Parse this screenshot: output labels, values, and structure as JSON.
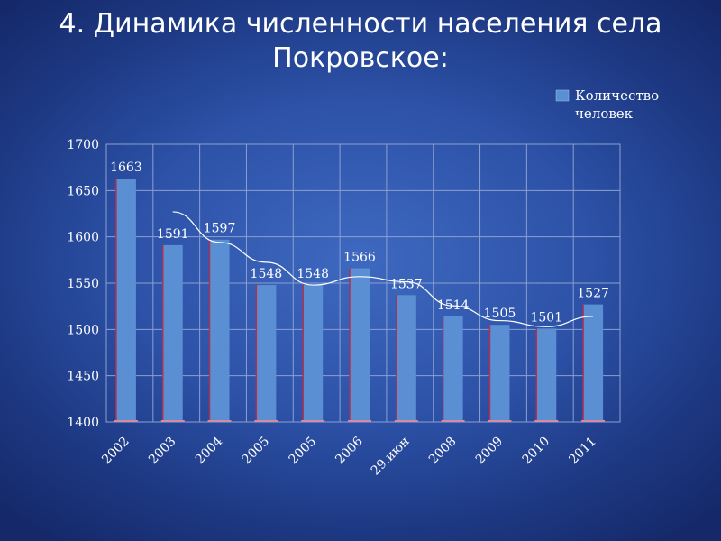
{
  "title": {
    "line1": "4. Динамика численности населения села",
    "line2": "Покровское:"
  },
  "chart_data": {
    "type": "bar",
    "categories": [
      "2002",
      "2003",
      "2004",
      "2005",
      "2005",
      "2006",
      "29.июн",
      "2008",
      "2009",
      "2010",
      "2011"
    ],
    "series": [
      {
        "name": "Количество человек",
        "values": [
          1663,
          1591,
          1597,
          1548,
          1548,
          1566,
          1537,
          1514,
          1505,
          1501,
          1527
        ]
      }
    ],
    "legend": {
      "lines": [
        "Количество",
        "человек"
      ],
      "position": "top-right"
    },
    "y_ticks": [
      "1400",
      "1450",
      "1500",
      "1550",
      "1600",
      "1650",
      "1700"
    ],
    "ylim": [
      1400,
      1700
    ],
    "grid": true,
    "trendline": true,
    "colors": {
      "bar": "#5b8fd4",
      "bar_edge": "#b03050",
      "grid": "#8aa0d0",
      "trend": "#ffffff"
    }
  }
}
